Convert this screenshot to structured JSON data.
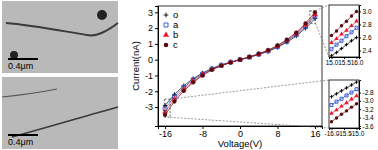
{
  "chart_data": [
    {
      "type": "line",
      "x_label": "Voltage(V)",
      "y_label": "Current(nA)",
      "x": [
        -16,
        -14,
        -12,
        -10,
        -8,
        -6,
        -4,
        -2,
        0,
        2,
        4,
        6,
        8,
        10,
        12,
        14,
        16
      ],
      "series": [
        {
          "name": "o",
          "color": "#000000",
          "marker": "plus",
          "values": [
            -2.9,
            -2.2,
            -1.65,
            -1.2,
            -0.85,
            -0.55,
            -0.33,
            -0.15,
            0,
            0.15,
            0.32,
            0.52,
            0.78,
            1.1,
            1.5,
            2.0,
            2.6
          ]
        },
        {
          "name": "a",
          "color": "#2a4fd6",
          "marker": "open-square",
          "values": [
            -3.1,
            -2.35,
            -1.76,
            -1.28,
            -0.9,
            -0.58,
            -0.35,
            -0.16,
            0,
            0.16,
            0.34,
            0.55,
            0.82,
            1.16,
            1.58,
            2.1,
            2.75
          ]
        },
        {
          "name": "b",
          "color": "#e8192c",
          "marker": "triangle",
          "values": [
            -3.3,
            -2.5,
            -1.87,
            -1.36,
            -0.96,
            -0.62,
            -0.37,
            -0.17,
            0,
            0.17,
            0.36,
            0.58,
            0.86,
            1.22,
            1.65,
            2.2,
            2.85
          ]
        },
        {
          "name": "c",
          "color": "#5a0a0a",
          "marker": "circle",
          "values": [
            -3.5,
            -2.65,
            -1.98,
            -1.44,
            -1.01,
            -0.65,
            -0.39,
            -0.18,
            0,
            0.18,
            0.38,
            0.61,
            0.9,
            1.27,
            1.72,
            2.3,
            3.0
          ]
        }
      ],
      "xlim": [
        -17.5,
        17.5
      ],
      "ylim": [
        -4.2,
        3.4
      ],
      "xticks": [
        -16,
        -8,
        0,
        8,
        16
      ],
      "yticks": [
        -3,
        -2,
        -1,
        0,
        1,
        2,
        3
      ],
      "legend": "upper left"
    },
    {
      "type": "line",
      "x": [
        15,
        15.2,
        15.4,
        15.6,
        15.8,
        16
      ],
      "series": [
        {
          "color": "#000000",
          "marker": "plus",
          "values": [
            2.32,
            2.37,
            2.43,
            2.49,
            2.55,
            2.6
          ]
        },
        {
          "color": "#2a4fd6",
          "marker": "open-square",
          "values": [
            2.42,
            2.49,
            2.55,
            2.62,
            2.68,
            2.75
          ]
        },
        {
          "color": "#e8192c",
          "marker": "triangle",
          "values": [
            2.52,
            2.58,
            2.65,
            2.71,
            2.78,
            2.85
          ]
        },
        {
          "color": "#5a0a0a",
          "marker": "circle",
          "values": [
            2.63,
            2.7,
            2.78,
            2.85,
            2.93,
            3.0
          ]
        }
      ],
      "xlim": [
        14.9,
        16.1
      ],
      "ylim": [
        2.3,
        3.1
      ],
      "xticks": [
        {
          "value": 15,
          "label": "15.0"
        },
        15.5,
        {
          "value": 16,
          "label": "16.0"
        }
      ],
      "yticks": [
        2.4,
        2.6,
        2.8,
        {
          "value": 3,
          "label": "3.0"
        }
      ]
    },
    {
      "type": "line",
      "x": [
        -16,
        -15.8,
        -15.6,
        -15.4,
        -15.2,
        -15
      ],
      "series": [
        {
          "color": "#000000",
          "marker": "plus",
          "values": [
            -2.9,
            -2.83,
            -2.76,
            -2.69,
            -2.62,
            -2.55
          ]
        },
        {
          "color": "#2a4fd6",
          "marker": "open-square",
          "values": [
            -3.1,
            -3.02,
            -2.95,
            -2.87,
            -2.8,
            -2.72
          ]
        },
        {
          "color": "#e8192c",
          "marker": "triangle",
          "values": [
            -3.3,
            -3.22,
            -3.13,
            -3.05,
            -2.96,
            -2.88
          ]
        },
        {
          "color": "#5a0a0a",
          "marker": "circle",
          "values": [
            -3.5,
            -3.41,
            -3.32,
            -3.24,
            -3.15,
            -3.07
          ]
        }
      ],
      "xlim": [
        -16.1,
        -14.9
      ],
      "ylim": [
        -3.65,
        -2.5
      ],
      "xticks": [
        {
          "value": -16,
          "label": "-16.0"
        },
        -15.5,
        {
          "value": -15,
          "label": "-15.0"
        }
      ],
      "yticks": [
        -2.8,
        {
          "value": -3,
          "label": "-3.0"
        },
        -3.2,
        -3.4,
        -3.6
      ]
    }
  ],
  "images": [
    {
      "scale_bar": "0.4μm"
    },
    {
      "scale_bar": "0.4μm"
    }
  ]
}
